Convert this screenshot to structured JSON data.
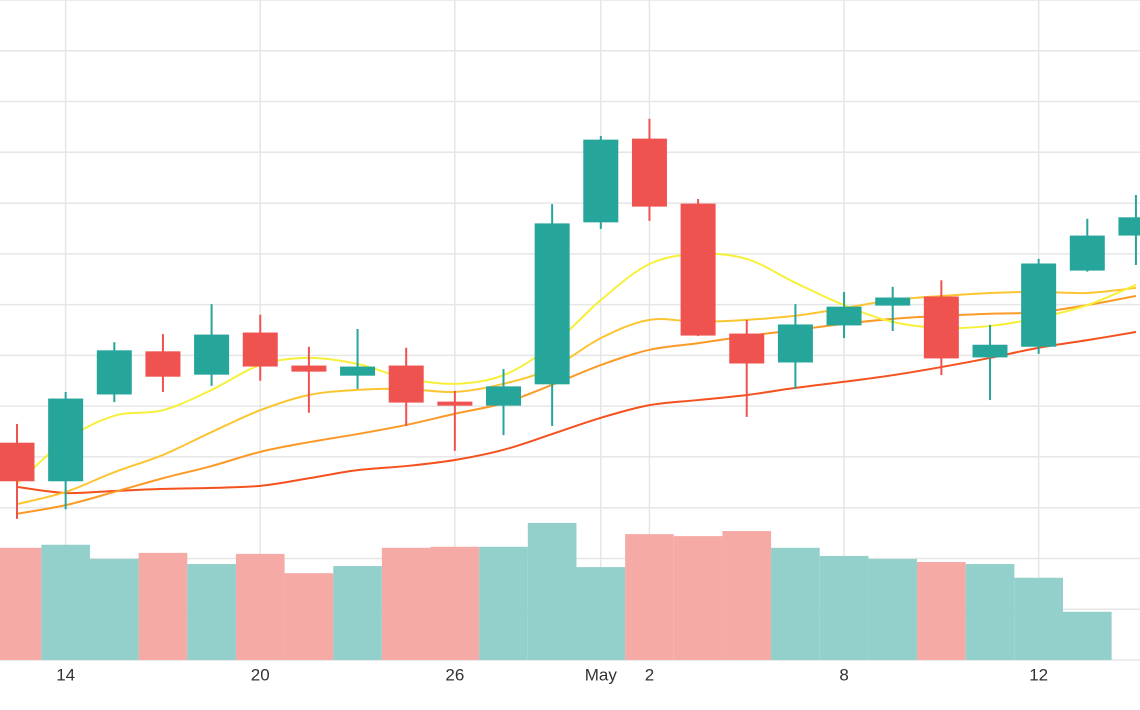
{
  "chart_data": {
    "type": "candlestick",
    "categories": [
      null,
      "14",
      null,
      null,
      null,
      "20",
      null,
      null,
      null,
      "26",
      null,
      null,
      "May",
      "2",
      null,
      null,
      null,
      "8",
      null,
      null,
      null,
      "12",
      null,
      null
    ],
    "open": [
      42.7,
      35.3,
      52.4,
      60.7,
      56.3,
      64.4,
      57.9,
      56.1,
      57.9,
      50.8,
      50.2,
      54.4,
      86.3,
      102.6,
      89.8,
      64.2,
      58.7,
      66.0,
      69.9,
      71.5,
      59.7,
      61.8,
      76.8,
      83.7
    ],
    "high": [
      46.5,
      52.8,
      62.6,
      64.2,
      70.1,
      68.0,
      61.7,
      65.2,
      61.5,
      53.0,
      57.3,
      89.8,
      103.2,
      106.6,
      90.8,
      67.0,
      70.1,
      72.5,
      73.5,
      74.8,
      66.0,
      79.0,
      86.9,
      91.6
    ],
    "low": [
      27.8,
      29.7,
      50.8,
      52.8,
      54.0,
      55.0,
      48.7,
      53.4,
      46.1,
      41.2,
      44.3,
      46.1,
      84.9,
      86.5,
      63.8,
      47.9,
      53.4,
      63.4,
      64.8,
      56.1,
      51.2,
      60.3,
      76.5,
      77.8
    ],
    "close": [
      35.3,
      51.4,
      60.9,
      55.9,
      64.0,
      57.9,
      56.9,
      57.7,
      50.8,
      50.2,
      53.8,
      85.9,
      102.4,
      89.4,
      64.0,
      58.5,
      66.0,
      69.5,
      71.3,
      59.5,
      62.0,
      78.0,
      83.5,
      87.1
    ],
    "volume": [
      22.1,
      22.7,
      19.9,
      21.1,
      18.9,
      20.9,
      17.1,
      18.5,
      22.1,
      22.3,
      22.3,
      27.0,
      18.3,
      24.8,
      24.4,
      25.4,
      22.1,
      20.5,
      19.9,
      19.3,
      18.9,
      16.2,
      9.5,
      null
    ],
    "up_color": "#26a69a",
    "down_color": "#ef5350",
    "volume_up_color": "#93cfcb",
    "volume_down_color": "#f6aaa5",
    "moving_averages": [
      {
        "color": "#f4511e",
        "values": [
          34.1,
          32.9,
          33.3,
          33.7,
          33.9,
          34.3,
          35.8,
          37.4,
          38.2,
          39.4,
          41.4,
          44.5,
          47.7,
          50.2,
          51.2,
          52.2,
          53.6,
          54.8,
          56.1,
          57.7,
          59.5,
          61.5,
          63.0,
          64.6
        ]
      },
      {
        "color": "#fb9a27",
        "values": [
          28.8,
          30.5,
          33.1,
          35.8,
          38.2,
          41.0,
          42.9,
          44.5,
          46.3,
          48.5,
          50.6,
          54.2,
          58.1,
          61.1,
          62.4,
          63.8,
          65.0,
          66.2,
          67.2,
          67.8,
          68.2,
          68.5,
          69.9,
          71.7
        ]
      },
      {
        "color": "#fbc531",
        "values": [
          30.7,
          33.1,
          37.0,
          40.4,
          44.9,
          49.2,
          52.2,
          53.2,
          53.4,
          52.8,
          54.4,
          57.5,
          63.4,
          67.0,
          66.6,
          67.0,
          67.8,
          69.3,
          70.9,
          71.7,
          72.3,
          72.5,
          72.3,
          73.3
        ]
      },
      {
        "color": "#f7f03a",
        "values": [
          34.7,
          43.3,
          48.1,
          49.2,
          53.2,
          58.1,
          59.5,
          58.3,
          55.5,
          54.4,
          56.1,
          62.0,
          70.9,
          78.0,
          80.0,
          79.0,
          74.3,
          69.9,
          66.6,
          65.4,
          65.8,
          67.4,
          69.9,
          73.9
        ]
      }
    ],
    "ylim": [
      0,
      130
    ],
    "yticks": [
      0,
      10,
      20,
      30,
      40,
      50,
      60,
      70,
      80,
      90,
      100,
      110,
      120,
      130
    ],
    "grid": true
  }
}
